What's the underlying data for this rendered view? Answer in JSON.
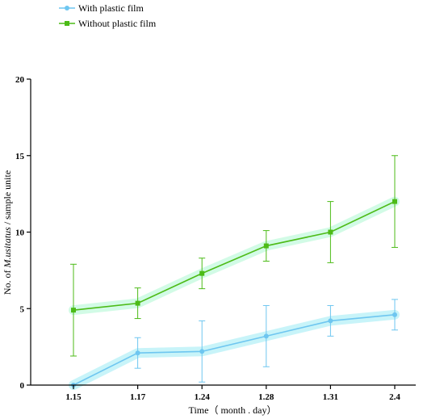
{
  "chart_data": {
    "type": "line",
    "categories": [
      "1.15",
      "1.17",
      "1.24",
      "1.28",
      "1.31",
      "2.4"
    ],
    "xlabel": "Time（ month . day）",
    "ylabel_parts": {
      "before": "No. of ",
      "italic": "M.usitatus",
      "after": " / sample unite"
    },
    "ylim": [
      0,
      20
    ],
    "yticks": [
      0,
      5,
      10,
      15,
      20
    ],
    "grid": false,
    "legend": "top-left",
    "series": [
      {
        "name": "With plastic film",
        "color": "#6ec6f0",
        "band_color": "#c8f4f9",
        "marker": "circle",
        "values": [
          0,
          2.1,
          2.2,
          3.2,
          4.2,
          4.6
        ],
        "errors": [
          0,
          1.0,
          2.0,
          2.0,
          1.0,
          1.0
        ]
      },
      {
        "name": "Without plastic film",
        "color": "#4cbb17",
        "band_color": "#d2fbe6",
        "marker": "square",
        "values": [
          4.9,
          5.35,
          7.3,
          9.1,
          10.0,
          12.0
        ],
        "errors": [
          3.0,
          1.0,
          1.0,
          1.0,
          2.0,
          3.0
        ]
      }
    ]
  }
}
